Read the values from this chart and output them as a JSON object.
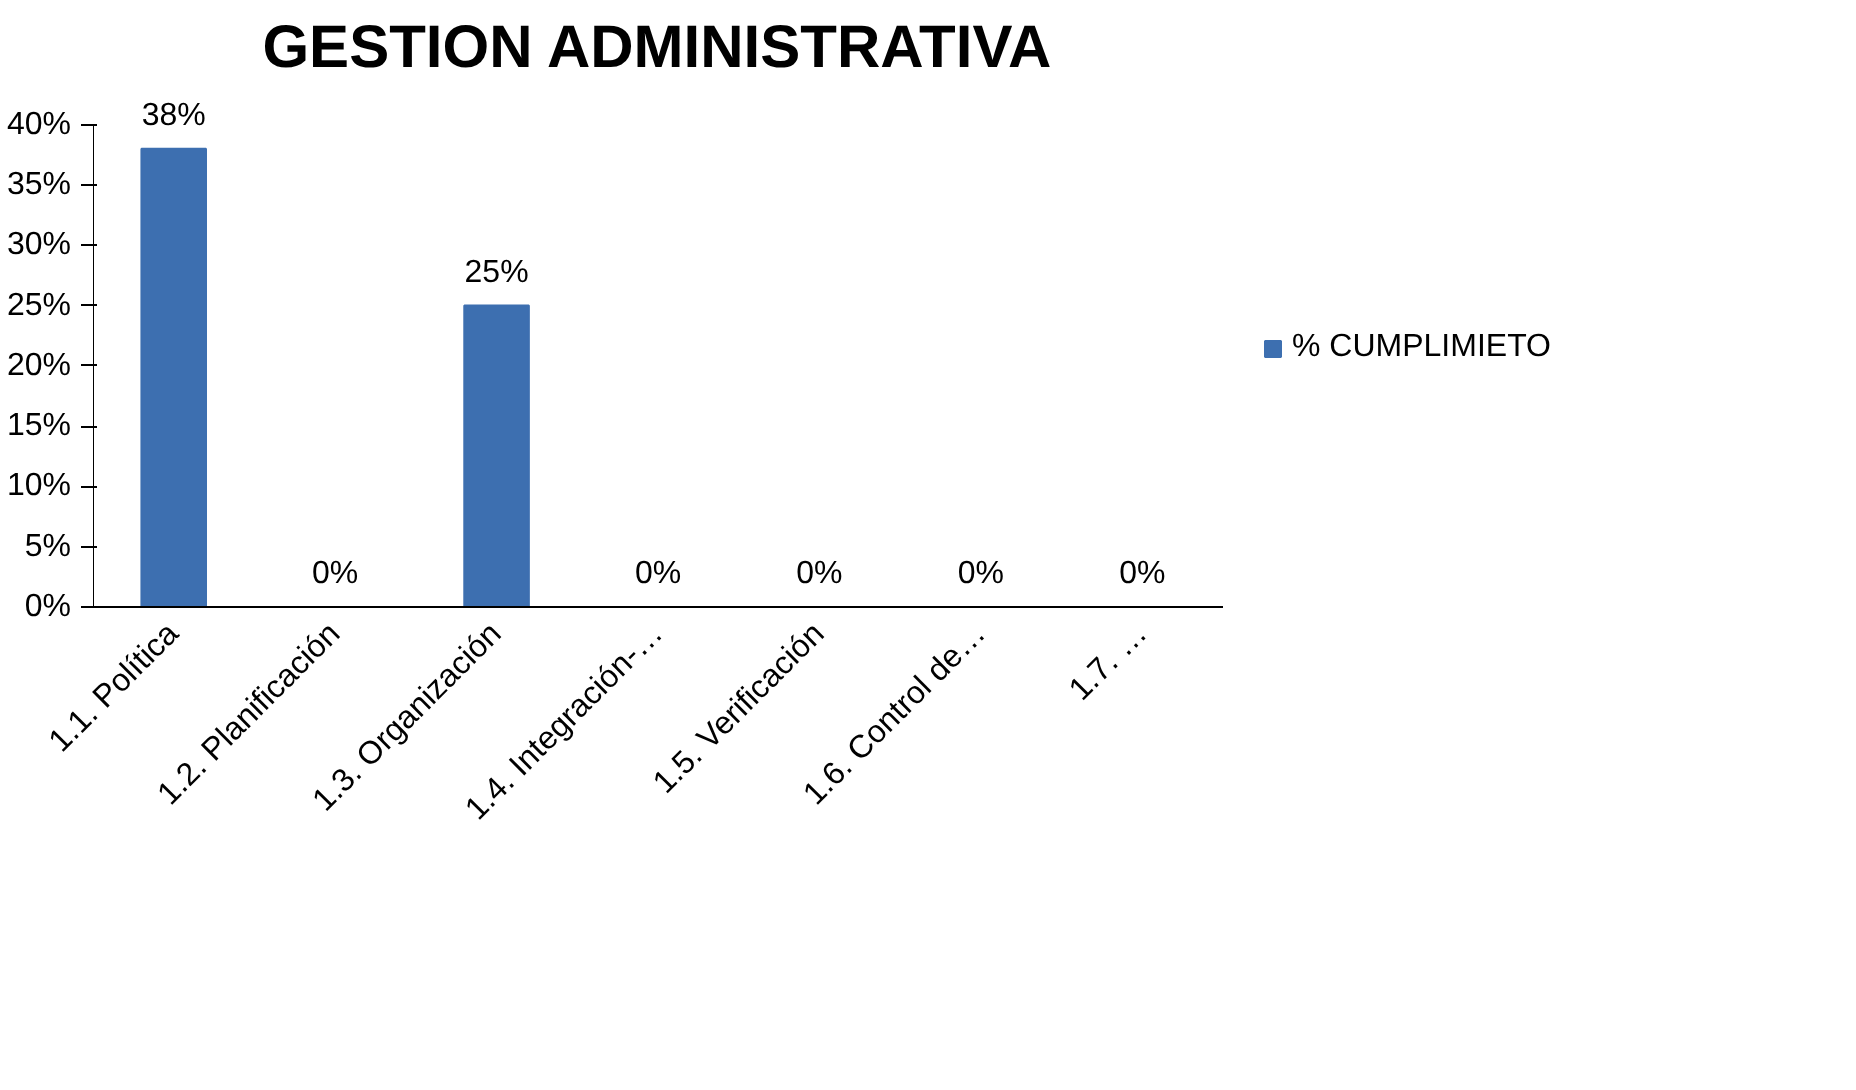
{
  "chart_data": {
    "type": "bar",
    "title": "GESTION ADMINISTRATIVA",
    "categories": [
      "1.1. Política",
      "1.2. Planificación",
      "1.3. Organización",
      "1.4. Integración-…",
      "1.5. Verificación",
      "1.6. Control de…",
      "1.7. …"
    ],
    "series": [
      {
        "name": "% CUMPLIMIETO",
        "color": "#3d6fb0",
        "values": [
          38,
          0,
          25,
          0,
          0,
          0,
          0
        ],
        "value_labels": [
          "38%",
          "0%",
          "25%",
          "0%",
          "0%",
          "0%",
          "0%"
        ]
      }
    ],
    "ylim": [
      0,
      40
    ],
    "yticks": [
      {
        "value": 0,
        "label": "0%"
      },
      {
        "value": 5,
        "label": "5%"
      },
      {
        "value": 10,
        "label": "10%"
      },
      {
        "value": 15,
        "label": "15%"
      },
      {
        "value": 20,
        "label": "20%"
      },
      {
        "value": 25,
        "label": "25%"
      },
      {
        "value": 30,
        "label": "30%"
      },
      {
        "value": 35,
        "label": "35%"
      },
      {
        "value": 40,
        "label": "40%"
      }
    ],
    "legend": "right",
    "grid": false
  }
}
